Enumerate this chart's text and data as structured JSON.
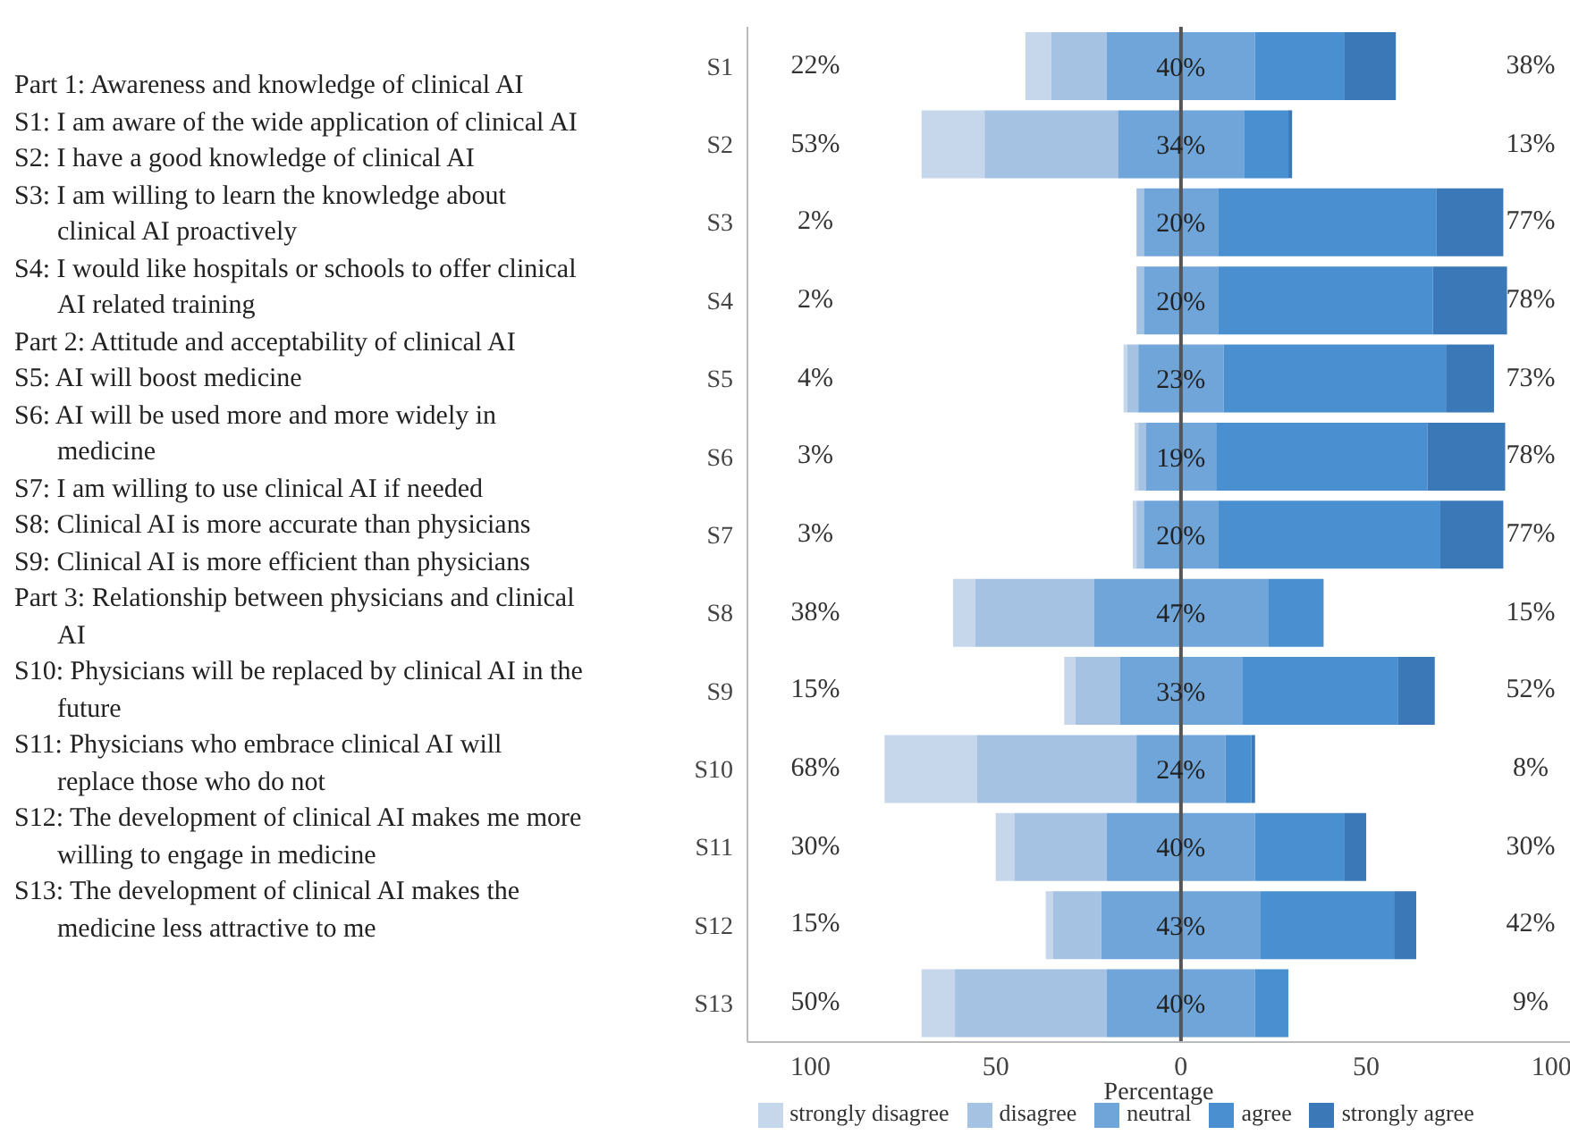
{
  "chart_data": {
    "type": "bar",
    "orientation": "horizontal",
    "xlabel": "Percentage",
    "categories": [
      "S1",
      "S2",
      "S3",
      "S4",
      "S5",
      "S6",
      "S7",
      "S8",
      "S9",
      "S10",
      "S11",
      "S12",
      "S13"
    ],
    "series": [
      {
        "name": "strongly disagree",
        "color": "#c6d7ec",
        "values": [
          7,
          17,
          null,
          null,
          1,
          1,
          1,
          6,
          3,
          25,
          5,
          2,
          9
        ],
        "base": [
          -42,
          -70,
          null,
          null,
          -15.5,
          -12.5,
          -13,
          -61.5,
          -31.5,
          -80,
          -50,
          -36.5,
          -70
        ]
      },
      {
        "name": "disagree",
        "color": "#a6c2e3",
        "values": [
          15,
          36,
          2,
          2,
          3,
          2,
          2,
          32,
          12,
          43,
          25,
          13,
          41
        ],
        "base": [
          -35,
          -53,
          -12,
          -12,
          -14.5,
          -11.5,
          -12,
          -55.5,
          -28.5,
          -55,
          -45,
          -34.5,
          -61
        ]
      },
      {
        "name": "neutral",
        "color": "#6fa5d8",
        "values": [
          40,
          34,
          20,
          20,
          23,
          19,
          20,
          47,
          33,
          24,
          40,
          43,
          40
        ],
        "base": [
          -20,
          -17,
          -10,
          -10,
          -11.5,
          -9.5,
          -10,
          -23.5,
          -16.5,
          -12,
          -20,
          -21.5,
          -20
        ],
        "value_labels": [
          "40%",
          "34%",
          "20%",
          "20%",
          "23%",
          "19%",
          "20%",
          "47%",
          "33%",
          "24%",
          "40%",
          "43%",
          "40%"
        ]
      },
      {
        "name": "agree",
        "color": "#4a8fcf",
        "values": [
          24,
          12,
          59,
          58,
          60,
          57,
          60,
          15,
          42,
          7,
          24,
          36,
          9
        ],
        "base": [
          20,
          17,
          10,
          10,
          11.5,
          9.5,
          10,
          23.5,
          16.5,
          12,
          20,
          21.5,
          20
        ]
      },
      {
        "name": "strongly agree",
        "color": "#3b78b8",
        "values": [
          14,
          1,
          18,
          20,
          13,
          21,
          17,
          null,
          10,
          1,
          6,
          6,
          null
        ],
        "base": [
          44,
          29,
          69,
          68,
          71.5,
          66.5,
          70,
          null,
          58.5,
          19,
          44,
          57.5,
          null
        ]
      }
    ],
    "xlim": [
      -117,
      105
    ],
    "xticks": [
      {
        "value": -100,
        "label": "100"
      },
      {
        "value": -50,
        "label": "50"
      },
      0,
      50,
      100
    ],
    "ref_lines": [
      {
        "axis": "x",
        "value": 0,
        "color": "#555555"
      }
    ],
    "legend": "bottom",
    "annotations": [
      "Part 1: Awareness and knowledge of clinical AI",
      "S1: I am aware of the wide application of clinical AI",
      "S2: I have a good knowledge of clinical AI",
      "S3: I am willing to learn the knowledge about clinical AI proactively",
      "S4: I would like hospitals or schools to offer clinical AI related training",
      "Part 2: Attitude and acceptability of clinical AI",
      "S5: AI will boost medicine",
      "S6: AI will be used more and more widely in medicine",
      "S7: I am willing to use clinical AI if needed",
      "S8: Clinical AI is more accurate than physicians",
      "S9: Clinical AI is more efficient than physicians",
      "Part 3: Relationship between physicians and clinical AI",
      "S10: Physicians will be replaced by clinical AI in the future",
      "S11: Physicians who embrace clinical AI will replace those who do not",
      "S12: The development of clinical AI makes me more willing to engage in medicine",
      "S13: The development of clinical AI makes the medicine less attractive to me",
      "22%",
      "38%",
      "53%",
      "13%",
      "2%",
      "77%",
      "2%",
      "78%",
      "4%",
      "73%",
      "3%",
      "78%",
      "3%",
      "77%",
      "38%",
      "15%",
      "15%",
      "52%",
      "68%",
      "8%",
      "30%",
      "30%",
      "15%",
      "42%",
      "50%",
      "9%"
    ]
  }
}
